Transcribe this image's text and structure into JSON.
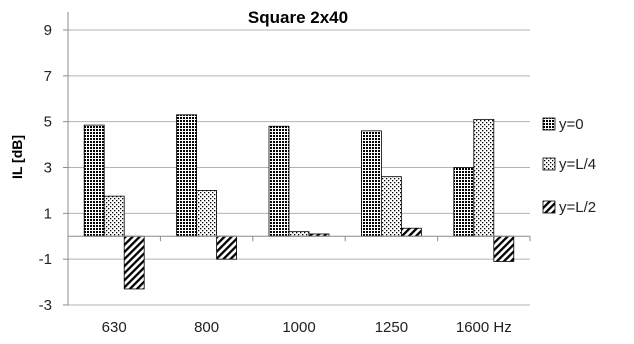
{
  "chart_data": {
    "type": "bar",
    "title": "Square 2x40",
    "xlabel": "",
    "ylabel": "IL [dB]",
    "categories": [
      "630",
      "800",
      "1000",
      "1250",
      "1600 Hz"
    ],
    "ylim": [
      -3,
      10
    ],
    "yticks": [
      9,
      7,
      5,
      3,
      1,
      -1,
      -3
    ],
    "grid": true,
    "legend": "right",
    "series": [
      {
        "name": "y=0",
        "values": [
          4.85,
          5.3,
          4.8,
          4.6,
          3.0
        ],
        "pattern": "dense-dots"
      },
      {
        "name": "y=L/4",
        "values": [
          1.75,
          2.0,
          0.2,
          2.6,
          5.1
        ],
        "pattern": "sparse-dots"
      },
      {
        "name": "y=L/2",
        "values": [
          -2.3,
          -1.0,
          0.1,
          0.35,
          -1.1
        ],
        "pattern": "diagonal-lines"
      }
    ]
  }
}
